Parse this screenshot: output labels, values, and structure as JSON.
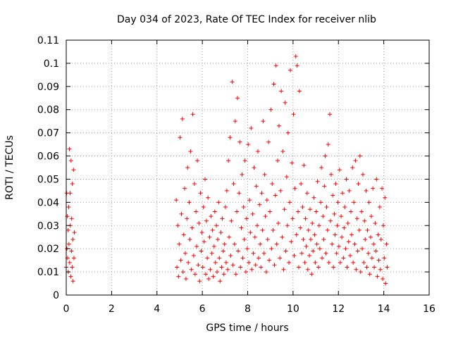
{
  "chart_data": {
    "type": "scatter",
    "title": "Day 034 of 2023, Rate Of TEC Index for receiver nlib",
    "xlabel": "GPS time / hours",
    "ylabel": "ROTI / TECUs",
    "xlim": [
      0,
      16
    ],
    "ylim": [
      0,
      0.11
    ],
    "x_ticks": [
      "0",
      "2",
      "4",
      "6",
      "8",
      "10",
      "12",
      "14",
      "16"
    ],
    "y_ticks": [
      "0",
      "0.01",
      "0.02",
      "0.03",
      "0.04",
      "0.05",
      "0.06",
      "0.07",
      "0.08",
      "0.09",
      "0.1",
      "0.11"
    ],
    "grid": true,
    "marker": "+",
    "series_color": "#ff0000",
    "series": [
      {
        "name": "ROTI",
        "points": [
          [
            0.0,
            0.012
          ],
          [
            0.02,
            0.044
          ],
          [
            0.03,
            0.02
          ],
          [
            0.05,
            0.034
          ],
          [
            0.06,
            0.016
          ],
          [
            0.08,
            0.028
          ],
          [
            0.09,
            0.01
          ],
          [
            0.11,
            0.038
          ],
          [
            0.12,
            0.022
          ],
          [
            0.14,
            0.063
          ],
          [
            0.15,
            0.014
          ],
          [
            0.17,
            0.044
          ],
          [
            0.18,
            0.03
          ],
          [
            0.2,
            0.008
          ],
          [
            0.21,
            0.058
          ],
          [
            0.23,
            0.019
          ],
          [
            0.24,
            0.033
          ],
          [
            0.26,
            0.012
          ],
          [
            0.27,
            0.048
          ],
          [
            0.29,
            0.024
          ],
          [
            0.3,
            0.006
          ],
          [
            0.32,
            0.054
          ],
          [
            0.34,
            0.016
          ],
          [
            0.36,
            0.027
          ],
          [
            4.85,
            0.041
          ],
          [
            4.88,
            0.012
          ],
          [
            4.92,
            0.03
          ],
          [
            4.95,
            0.008
          ],
          [
            4.98,
            0.022
          ],
          [
            5.02,
            0.068
          ],
          [
            5.05,
            0.015
          ],
          [
            5.08,
            0.035
          ],
          [
            5.12,
            0.076
          ],
          [
            5.15,
            0.01
          ],
          [
            5.18,
            0.026
          ],
          [
            5.22,
            0.046
          ],
          [
            5.25,
            0.018
          ],
          [
            5.28,
            0.007
          ],
          [
            5.32,
            0.033
          ],
          [
            5.35,
            0.055
          ],
          [
            5.38,
            0.014
          ],
          [
            5.42,
            0.04
          ],
          [
            5.45,
            0.024
          ],
          [
            5.48,
            0.062
          ],
          [
            5.52,
            0.011
          ],
          [
            5.55,
            0.029
          ],
          [
            5.58,
            0.078
          ],
          [
            5.62,
            0.017
          ],
          [
            5.65,
            0.048
          ],
          [
            5.68,
            0.009
          ],
          [
            5.72,
            0.036
          ],
          [
            5.75,
            0.021
          ],
          [
            5.78,
            0.058
          ],
          [
            5.82,
            0.013
          ],
          [
            5.85,
            0.031
          ],
          [
            5.88,
            0.006
          ],
          [
            5.92,
            0.044
          ],
          [
            5.95,
            0.019
          ],
          [
            5.98,
            0.027
          ],
          [
            6.02,
            0.012
          ],
          [
            6.05,
            0.038
          ],
          [
            6.08,
            0.023
          ],
          [
            6.12,
            0.05
          ],
          [
            6.15,
            0.009
          ],
          [
            6.18,
            0.032
          ],
          [
            6.22,
            0.016
          ],
          [
            6.25,
            0.042
          ],
          [
            6.28,
            0.007
          ],
          [
            6.32,
            0.025
          ],
          [
            6.35,
            0.011
          ],
          [
            6.38,
            0.034
          ],
          [
            6.42,
            0.018
          ],
          [
            6.45,
            0.028
          ],
          [
            6.48,
            0.008
          ],
          [
            6.52,
            0.021
          ],
          [
            6.55,
            0.036
          ],
          [
            6.58,
            0.014
          ],
          [
            6.62,
            0.03
          ],
          [
            6.65,
            0.01
          ],
          [
            6.68,
            0.024
          ],
          [
            6.72,
            0.04
          ],
          [
            6.75,
            0.016
          ],
          [
            6.78,
            0.006
          ],
          [
            6.82,
            0.027
          ],
          [
            6.85,
            0.012
          ],
          [
            6.88,
            0.033
          ],
          [
            6.92,
            0.019
          ],
          [
            6.95,
            0.009
          ],
          [
            6.98,
            0.022
          ],
          [
            7.02,
            0.038
          ],
          [
            7.05,
            0.014
          ],
          [
            7.08,
            0.045
          ],
          [
            7.12,
            0.011
          ],
          [
            7.15,
            0.058
          ],
          [
            7.18,
            0.025
          ],
          [
            7.22,
            0.068
          ],
          [
            7.25,
            0.017
          ],
          [
            7.28,
            0.032
          ],
          [
            7.32,
            0.092
          ],
          [
            7.35,
            0.013
          ],
          [
            7.38,
            0.048
          ],
          [
            7.42,
            0.022
          ],
          [
            7.45,
            0.075
          ],
          [
            7.48,
            0.009
          ],
          [
            7.52,
            0.036
          ],
          [
            7.55,
            0.085
          ],
          [
            7.58,
            0.019
          ],
          [
            7.62,
            0.044
          ],
          [
            7.65,
            0.066
          ],
          [
            7.68,
            0.012
          ],
          [
            7.72,
            0.029
          ],
          [
            7.75,
            0.052
          ],
          [
            7.78,
            0.016
          ],
          [
            7.82,
            0.038
          ],
          [
            7.85,
            0.024
          ],
          [
            7.88,
            0.058
          ],
          [
            7.92,
            0.01
          ],
          [
            7.95,
            0.033
          ],
          [
            7.98,
            0.02
          ],
          [
            8.02,
            0.065
          ],
          [
            8.05,
            0.014
          ],
          [
            8.08,
            0.041
          ],
          [
            8.12,
            0.027
          ],
          [
            8.15,
            0.072
          ],
          [
            8.18,
            0.011
          ],
          [
            8.22,
            0.035
          ],
          [
            8.25,
            0.018
          ],
          [
            8.28,
            0.055
          ],
          [
            8.32,
            0.025
          ],
          [
            8.35,
            0.013
          ],
          [
            8.38,
            0.047
          ],
          [
            8.42,
            0.03
          ],
          [
            8.45,
            0.062
          ],
          [
            8.48,
            0.016
          ],
          [
            8.52,
            0.039
          ],
          [
            8.55,
            0.022
          ],
          [
            8.58,
            0.012
          ],
          [
            8.62,
            0.044
          ],
          [
            8.65,
            0.028
          ],
          [
            8.68,
            0.075
          ],
          [
            8.72,
            0.018
          ],
          [
            8.75,
            0.052
          ],
          [
            8.78,
            0.034
          ],
          [
            8.82,
            0.01
          ],
          [
            8.85,
            0.041
          ],
          [
            8.88,
            0.024
          ],
          [
            8.92,
            0.066
          ],
          [
            8.95,
            0.015
          ],
          [
            8.98,
            0.036
          ],
          [
            9.02,
            0.08
          ],
          [
            9.05,
            0.02
          ],
          [
            9.08,
            0.048
          ],
          [
            9.12,
            0.028
          ],
          [
            9.15,
            0.091
          ],
          [
            9.18,
            0.013
          ],
          [
            9.22,
            0.043
          ],
          [
            9.25,
            0.099
          ],
          [
            9.28,
            0.022
          ],
          [
            9.32,
            0.058
          ],
          [
            9.35,
            0.031
          ],
          [
            9.38,
            0.073
          ],
          [
            9.42,
            0.016
          ],
          [
            9.45,
            0.045
          ],
          [
            9.48,
            0.088
          ],
          [
            9.52,
            0.025
          ],
          [
            9.55,
            0.062
          ],
          [
            9.58,
            0.011
          ],
          [
            9.62,
            0.037
          ],
          [
            9.65,
            0.083
          ],
          [
            9.68,
            0.019
          ],
          [
            9.72,
            0.051
          ],
          [
            9.75,
            0.03
          ],
          [
            9.78,
            0.07
          ],
          [
            9.82,
            0.014
          ],
          [
            9.85,
            0.04
          ],
          [
            9.88,
            0.097
          ],
          [
            9.92,
            0.023
          ],
          [
            9.95,
            0.057
          ],
          [
            9.98,
            0.033
          ],
          [
            10.02,
            0.078
          ],
          [
            10.05,
            0.017
          ],
          [
            10.08,
            0.046
          ],
          [
            10.12,
            0.103
          ],
          [
            10.15,
            0.026
          ],
          [
            10.18,
            0.099
          ],
          [
            10.22,
            0.036
          ],
          [
            10.25,
            0.012
          ],
          [
            10.28,
            0.088
          ],
          [
            10.32,
            0.029
          ],
          [
            10.35,
            0.048
          ],
          [
            10.38,
            0.018
          ],
          [
            10.42,
            0.038
          ],
          [
            10.45,
            0.024
          ],
          [
            10.48,
            0.056
          ],
          [
            10.52,
            0.014
          ],
          [
            10.55,
            0.033
          ],
          [
            10.58,
            0.021
          ],
          [
            10.62,
            0.044
          ],
          [
            10.65,
            0.011
          ],
          [
            10.68,
            0.028
          ],
          [
            10.72,
            0.017
          ],
          [
            10.75,
            0.037
          ],
          [
            10.78,
            0.024
          ],
          [
            10.82,
            0.009
          ],
          [
            10.85,
            0.031
          ],
          [
            10.88,
            0.019
          ],
          [
            10.92,
            0.042
          ],
          [
            10.95,
            0.026
          ],
          [
            10.98,
            0.014
          ],
          [
            11.02,
            0.036
          ],
          [
            11.05,
            0.022
          ],
          [
            11.08,
            0.049
          ],
          [
            11.12,
            0.012
          ],
          [
            11.15,
            0.03
          ],
          [
            11.18,
            0.02
          ],
          [
            11.22,
            0.04
          ],
          [
            11.25,
            0.055
          ],
          [
            11.28,
            0.016
          ],
          [
            11.32,
            0.034
          ],
          [
            11.35,
            0.024
          ],
          [
            11.38,
            0.047
          ],
          [
            11.42,
            0.06
          ],
          [
            11.45,
            0.018
          ],
          [
            11.48,
            0.038
          ],
          [
            11.52,
            0.028
          ],
          [
            11.55,
            0.065
          ],
          [
            11.58,
            0.014
          ],
          [
            11.62,
            0.078
          ],
          [
            11.65,
            0.032
          ],
          [
            11.68,
            0.052
          ],
          [
            11.72,
            0.022
          ],
          [
            11.75,
            0.043
          ],
          [
            11.78,
            0.012
          ],
          [
            11.82,
            0.035
          ],
          [
            11.85,
            0.026
          ],
          [
            11.88,
            0.048
          ],
          [
            11.92,
            0.018
          ],
          [
            11.95,
            0.03
          ],
          [
            11.98,
            0.04
          ],
          [
            12.02,
            0.021
          ],
          [
            12.05,
            0.054
          ],
          [
            12.08,
            0.014
          ],
          [
            12.12,
            0.034
          ],
          [
            12.15,
            0.025
          ],
          [
            12.18,
            0.044
          ],
          [
            12.22,
            0.016
          ],
          [
            12.25,
            0.029
          ],
          [
            12.28,
            0.038
          ],
          [
            12.32,
            0.02
          ],
          [
            12.35,
            0.05
          ],
          [
            12.38,
            0.012
          ],
          [
            12.42,
            0.031
          ],
          [
            12.45,
            0.023
          ],
          [
            12.48,
            0.045
          ],
          [
            12.52,
            0.017
          ],
          [
            12.55,
            0.036
          ],
          [
            12.58,
            0.026
          ],
          [
            12.62,
            0.055
          ],
          [
            12.65,
            0.014
          ],
          [
            12.68,
            0.04
          ],
          [
            12.72,
            0.022
          ],
          [
            12.75,
            0.058
          ],
          [
            12.78,
            0.011
          ],
          [
            12.82,
            0.033
          ],
          [
            12.85,
            0.019
          ],
          [
            12.88,
            0.048
          ],
          [
            12.92,
            0.028
          ],
          [
            12.95,
            0.06
          ],
          [
            12.98,
            0.01
          ],
          [
            13.02,
            0.036
          ],
          [
            13.05,
            0.02
          ],
          [
            13.08,
            0.052
          ],
          [
            13.12,
            0.014
          ],
          [
            13.15,
            0.032
          ],
          [
            13.18,
            0.024
          ],
          [
            13.22,
            0.045
          ],
          [
            13.25,
            0.012
          ],
          [
            13.28,
            0.028
          ],
          [
            13.32,
            0.018
          ],
          [
            13.35,
            0.04
          ],
          [
            13.38,
            0.009
          ],
          [
            13.42,
            0.025
          ],
          [
            13.45,
            0.034
          ],
          [
            13.48,
            0.016
          ],
          [
            13.52,
            0.046
          ],
          [
            13.55,
            0.022
          ],
          [
            13.58,
            0.012
          ],
          [
            13.62,
            0.031
          ],
          [
            13.65,
            0.019
          ],
          [
            13.68,
            0.05
          ],
          [
            13.72,
            0.008
          ],
          [
            13.75,
            0.026
          ],
          [
            13.78,
            0.015
          ],
          [
            13.82,
            0.038
          ],
          [
            13.85,
            0.011
          ],
          [
            13.88,
            0.024
          ],
          [
            13.92,
            0.046
          ],
          [
            13.95,
            0.007
          ],
          [
            13.98,
            0.03
          ],
          [
            14.02,
            0.016
          ],
          [
            14.05,
            0.042
          ],
          [
            14.08,
            0.005
          ],
          [
            14.12,
            0.022
          ],
          [
            14.15,
            0.012
          ]
        ]
      }
    ]
  }
}
